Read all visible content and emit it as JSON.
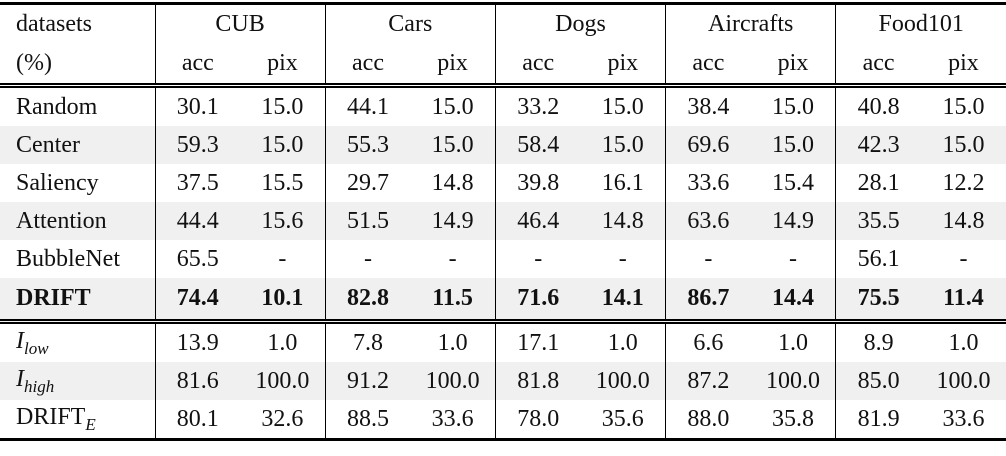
{
  "header": {
    "first": [
      "datasets",
      "(%)"
    ],
    "groups": [
      {
        "name": "CUB",
        "cols": [
          "acc",
          "pix"
        ]
      },
      {
        "name": "Cars",
        "cols": [
          "acc",
          "pix"
        ]
      },
      {
        "name": "Dogs",
        "cols": [
          "acc",
          "pix"
        ]
      },
      {
        "name": "Aircrafts",
        "cols": [
          "acc",
          "pix"
        ]
      },
      {
        "name": "Food101",
        "cols": [
          "acc",
          "pix"
        ]
      }
    ]
  },
  "sections": [
    {
      "rows": [
        {
          "label": "Random",
          "cells": [
            "30.1",
            "15.0",
            "44.1",
            "15.0",
            "33.2",
            "15.0",
            "38.4",
            "15.0",
            "40.8",
            "15.0"
          ]
        },
        {
          "label": "Center",
          "cells": [
            "59.3",
            "15.0",
            "55.3",
            "15.0",
            "58.4",
            "15.0",
            "69.6",
            "15.0",
            "42.3",
            "15.0"
          ]
        },
        {
          "label": "Saliency",
          "cells": [
            "37.5",
            "15.5",
            "29.7",
            "14.8",
            "39.8",
            "16.1",
            "33.6",
            "15.4",
            "28.1",
            "12.2"
          ]
        },
        {
          "label": "Attention",
          "cells": [
            "44.4",
            "15.6",
            "51.5",
            "14.9",
            "46.4",
            "14.8",
            "63.6",
            "14.9",
            "35.5",
            "14.8"
          ]
        },
        {
          "label": "BubbleNet",
          "cells": [
            "65.5",
            "-",
            "-",
            "-",
            "-",
            "-",
            "-",
            "-",
            "56.1",
            "-"
          ]
        },
        {
          "label": "DRIFT",
          "cells": [
            "74.4",
            "10.1",
            "82.8",
            "11.5",
            "71.6",
            "14.1",
            "86.7",
            "14.4",
            "75.5",
            "11.4"
          ]
        }
      ]
    },
    {
      "rows": [
        {
          "label": {
            "main": "I",
            "sub": "low"
          },
          "cells": [
            "13.9",
            "1.0",
            "7.8",
            "1.0",
            "17.1",
            "1.0",
            "6.6",
            "1.0",
            "8.9",
            "1.0"
          ]
        },
        {
          "label": {
            "main": "I",
            "sub": "high"
          },
          "cells": [
            "81.6",
            "100.0",
            "91.2",
            "100.0",
            "81.8",
            "100.0",
            "87.2",
            "100.0",
            "85.0",
            "100.0"
          ]
        },
        {
          "label": {
            "main": "DRIFT",
            "sub": "E"
          },
          "cells": [
            "80.1",
            "32.6",
            "88.5",
            "33.6",
            "78.0",
            "35.6",
            "88.0",
            "35.8",
            "81.9",
            "33.6"
          ]
        }
      ]
    }
  ]
}
